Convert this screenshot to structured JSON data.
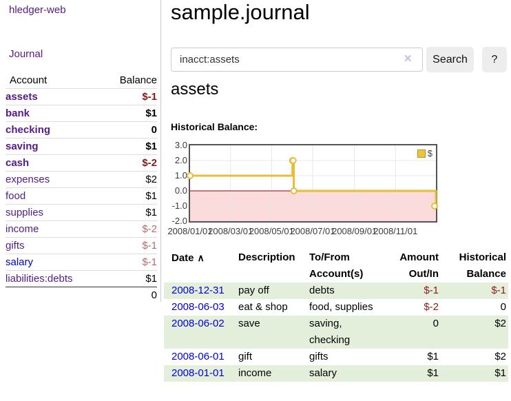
{
  "colors": {
    "visited_link_purple": "#551a8b",
    "link_blue": "#0000e0",
    "negative_red": "#8c1818",
    "dimmed_negative": "#b36b6b",
    "series_gold": "#e9bc36",
    "legend_swatch": "#edc240",
    "negative_region_pink": "#fbdbdb",
    "zero_line_dark_red": "#8b0000",
    "row_green": "#e3efdb",
    "button_gray": "#ededed"
  },
  "sidebar": {
    "app_title": "hledger-web",
    "journal_link": "Journal",
    "accounts": {
      "header": {
        "account": "Account",
        "balance": "Balance"
      },
      "rows": [
        {
          "name": "assets",
          "balance": "$-1"
        },
        {
          "name": "bank",
          "balance": "$1"
        },
        {
          "name": "checking",
          "balance": "0"
        },
        {
          "name": "saving",
          "balance": "$1"
        },
        {
          "name": "cash",
          "balance": "$-2"
        },
        {
          "name": "expenses",
          "balance": "$2"
        },
        {
          "name": "food",
          "balance": "$1"
        },
        {
          "name": "supplies",
          "balance": "$1"
        },
        {
          "name": "income",
          "balance": "$-2"
        },
        {
          "name": "gifts",
          "balance": "$-1"
        },
        {
          "name": "salary",
          "balance": "$-1"
        },
        {
          "name": "liabilities:debts",
          "balance": "$1"
        }
      ],
      "total": "0"
    }
  },
  "main": {
    "title": "sample.journal",
    "search": {
      "value": "inacct:assets",
      "clear_icon": "✕",
      "button": "Search",
      "help": "?"
    },
    "heading": "assets",
    "chart_title": "Historical Balance:",
    "register": {
      "headers": {
        "date": "Date",
        "sort_icon": "∧",
        "description": "Description",
        "accounts_line1": "To/From",
        "accounts_line2": "Account(s)",
        "amount_line1": "Amount",
        "amount_line2": "Out/In",
        "balance_line1": "Historical",
        "balance_line2": "Balance"
      },
      "rows": [
        {
          "date": "2008-12-31",
          "description": "pay off",
          "accounts": "debts",
          "amount": "$-1",
          "balance": "$-1"
        },
        {
          "date": "2008-06-03",
          "description": "eat & shop",
          "accounts": "food, supplies",
          "amount": "$-2",
          "balance": "0"
        },
        {
          "date": "2008-06-02",
          "description": "save",
          "accounts": "saving, checking",
          "amount": "0",
          "balance": "$2"
        },
        {
          "date": "2008-06-01",
          "description": "gift",
          "accounts": "gifts",
          "amount": "$1",
          "balance": "$2"
        },
        {
          "date": "2008-01-01",
          "description": "income",
          "accounts": "salary",
          "amount": "$1",
          "balance": "$1"
        }
      ]
    }
  },
  "chart_data": {
    "type": "line",
    "step": true,
    "title": "Historical Balance:",
    "series": [
      {
        "name": "$",
        "color": "#e9bc36",
        "points": [
          [
            "2008-01-01",
            1
          ],
          [
            "2008-06-01",
            2
          ],
          [
            "2008-06-02",
            2
          ],
          [
            "2008-06-03",
            0
          ],
          [
            "2008-12-31",
            -1
          ]
        ]
      }
    ],
    "xlim": [
      "2008-01-01",
      "2008-12-31"
    ],
    "ylim": [
      -2,
      3
    ],
    "yticks": [
      3,
      2,
      1,
      0,
      -1,
      -2
    ],
    "xticks": [
      {
        "date": "2008-01-01",
        "label": "2008/01/01"
      },
      {
        "date": "2008-03-01",
        "label": "2008/03/01"
      },
      {
        "date": "2008-05-01",
        "label": "2008/05/01"
      },
      {
        "date": "2008-07-01",
        "label": "2008/07/01"
      },
      {
        "date": "2008-09-01",
        "label": "2008/09/01"
      },
      {
        "date": "2008-11-01",
        "label": "2008/11/01"
      }
    ],
    "legend": {
      "label": "$",
      "position": "top-right"
    },
    "grid": true,
    "zero_line_color": "#8b0000",
    "negative_region_fill": "#fbdbdb"
  }
}
